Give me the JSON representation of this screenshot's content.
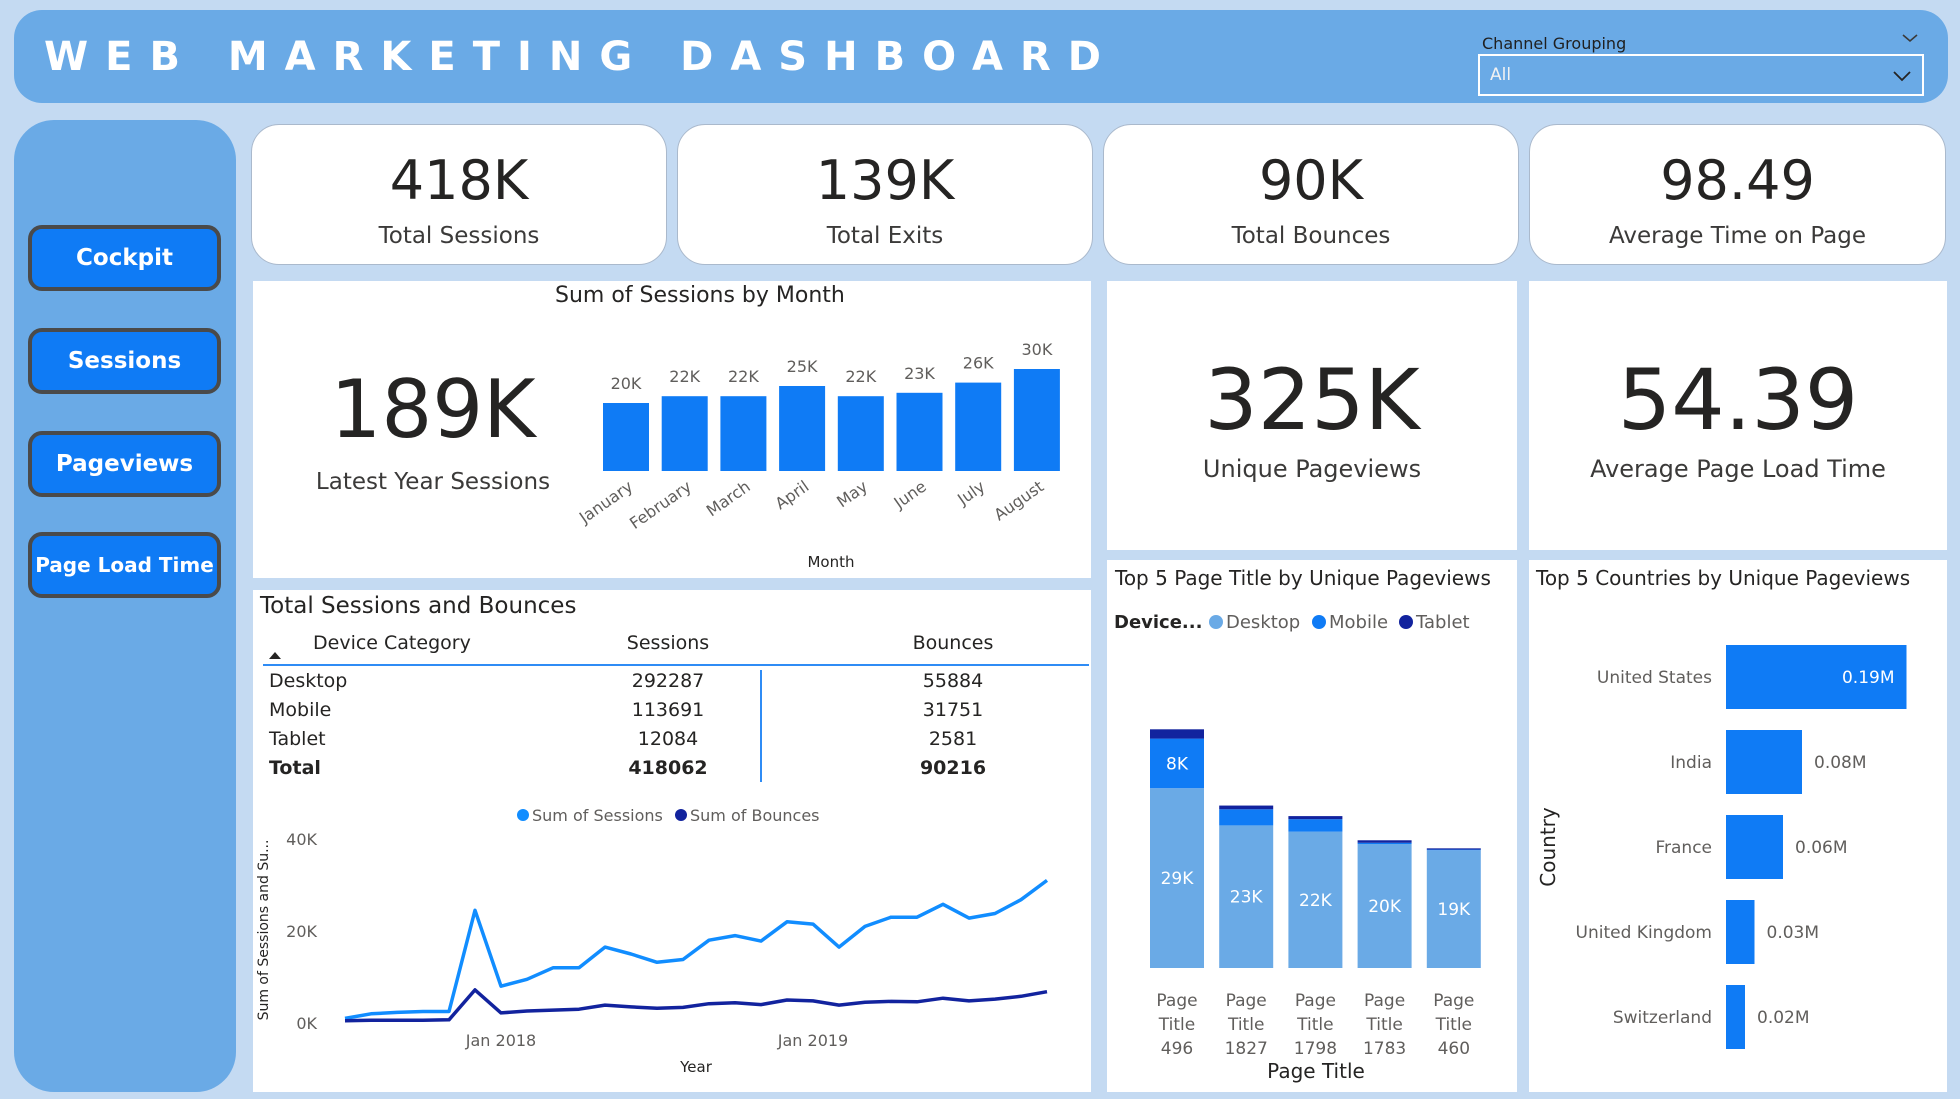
{
  "header": {
    "title": "WEB MARKETING DASHBOARD",
    "slicer": {
      "label": "Channel Grouping",
      "value": "All"
    }
  },
  "sidebar": {
    "buttons": [
      {
        "label": "Cockpit"
      },
      {
        "label": "Sessions"
      },
      {
        "label": "Pageviews"
      },
      {
        "label": "Page Load Time"
      }
    ]
  },
  "kpis": [
    {
      "value": "418K",
      "label": "Total Sessions"
    },
    {
      "value": "139K",
      "label": "Total Exits"
    },
    {
      "value": "90K",
      "label": "Total Bounces"
    },
    {
      "value": "98.49",
      "label": "Average Time on Page"
    }
  ],
  "latest_year": {
    "value": "189K",
    "label": "Latest Year Sessions"
  },
  "unique_pageviews": {
    "value": "325K",
    "label": "Unique Pageviews"
  },
  "avg_load_time": {
    "value": "54.39",
    "label": "Average Page Load Time"
  },
  "sessions_table": {
    "title": "Total Sessions and Bounces",
    "headers": [
      "Device Category",
      "Sessions",
      "Bounces"
    ],
    "rows": [
      [
        "Desktop",
        "292287",
        "55884"
      ],
      [
        "Mobile",
        "113691",
        "31751"
      ],
      [
        "Tablet",
        "12084",
        "2581"
      ]
    ],
    "total": [
      "Total",
      "418062",
      "90216"
    ]
  },
  "colors": {
    "header_bg": "#6aaae6",
    "page_bg": "#c4daf2",
    "accent": "#0f7bf5",
    "desktop": "#6aaae6",
    "mobile": "#0f7bf5",
    "tablet": "#12239e",
    "sessions_line": "#118dff",
    "bounces_line": "#12239e"
  },
  "chart_data": [
    {
      "type": "bar",
      "title": "Sum of Sessions by Month",
      "xlabel": "Month",
      "ylabel": "",
      "categories": [
        "January",
        "February",
        "March",
        "April",
        "May",
        "June",
        "July",
        "August"
      ],
      "values": [
        20,
        22,
        22,
        25,
        22,
        23,
        26,
        30
      ],
      "data_labels": [
        "20K",
        "22K",
        "22K",
        "25K",
        "22K",
        "23K",
        "26K",
        "30K"
      ],
      "units": "K"
    },
    {
      "type": "line",
      "legend": [
        "Sum of Sessions",
        "Sum of Bounces"
      ],
      "xlabel": "Year",
      "ylabel": "Sum of Sessions and Su...",
      "y_ticks": [
        "0K",
        "20K",
        "40K"
      ],
      "ylim": [
        0,
        40
      ],
      "x_ticks": [
        {
          "label": "Jan 2018",
          "index": 6
        },
        {
          "label": "Jan 2019",
          "index": 18
        }
      ],
      "series": [
        {
          "name": "Sum of Sessions",
          "values": [
            1,
            2,
            2.3,
            2.5,
            2.5,
            24.5,
            8,
            9.5,
            12,
            12,
            16.5,
            15,
            13.2,
            13.8,
            18,
            19,
            17.8,
            22,
            21.5,
            16.5,
            21,
            23,
            23,
            25.8,
            22.8,
            23.8,
            26.8,
            31
          ]
        },
        {
          "name": "Sum of Bounces",
          "values": [
            0.5,
            0.6,
            0.6,
            0.6,
            0.7,
            7.2,
            2.2,
            2.6,
            2.8,
            3,
            3.9,
            3.5,
            3.2,
            3.4,
            4.2,
            4.4,
            4,
            5,
            4.8,
            3.9,
            4.5,
            4.7,
            4.6,
            5.4,
            4.8,
            5.2,
            5.8,
            6.8
          ]
        }
      ]
    },
    {
      "type": "bar",
      "title": "Top 5 Page Title by Unique Pageviews",
      "xlabel": "Page Title",
      "legend_title": "Device...",
      "legend": [
        "Desktop",
        "Mobile",
        "Tablet"
      ],
      "categories": [
        [
          "Page",
          "Title",
          "496"
        ],
        [
          "Page",
          "Title",
          "1827"
        ],
        [
          "Page",
          "Title",
          "1798"
        ],
        [
          "Page",
          "Title",
          "1783"
        ],
        [
          "Page",
          "Title",
          "460"
        ]
      ],
      "series": [
        {
          "name": "Desktop",
          "values": [
            29,
            23,
            22,
            20,
            19
          ],
          "labels": [
            "29K",
            "23K",
            "22K",
            "20K",
            "19K"
          ]
        },
        {
          "name": "Mobile",
          "values": [
            8,
            2.6,
            2,
            0.2,
            0.1
          ],
          "labels": [
            "8K",
            "",
            "",
            "",
            ""
          ]
        },
        {
          "name": "Tablet",
          "values": [
            1.5,
            0.6,
            0.5,
            0.4,
            0.2
          ],
          "labels": [
            "",
            "",
            "",
            "",
            ""
          ]
        }
      ],
      "units": "K"
    },
    {
      "type": "bar",
      "orientation": "horizontal",
      "title": "Top 5 Countries by Unique Pageviews",
      "ylabel": "Country",
      "categories": [
        "United States",
        "India",
        "France",
        "United Kingdom",
        "Switzerland"
      ],
      "values": [
        0.19,
        0.08,
        0.06,
        0.03,
        0.02
      ],
      "data_labels": [
        "0.19M",
        "0.08M",
        "0.06M",
        "0.03M",
        "0.02M"
      ],
      "units": "M"
    }
  ]
}
